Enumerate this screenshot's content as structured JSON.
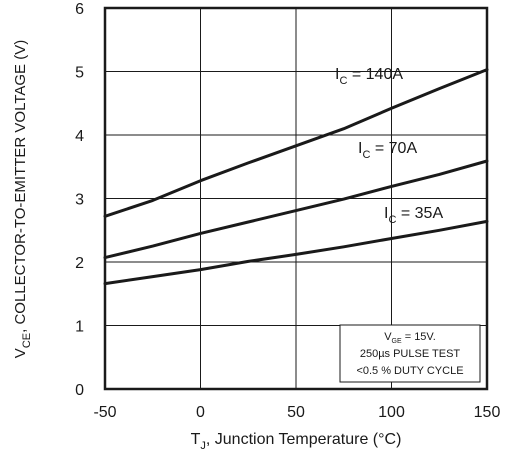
{
  "chart_data": {
    "type": "line",
    "x_axis": {
      "range": [
        -50,
        150
      ],
      "ticks": [
        "-50",
        "0",
        "50",
        "100",
        "150"
      ],
      "tick_values": [
        -50,
        0,
        50,
        100,
        150
      ],
      "label_main": "T",
      "label_sub": "J",
      "label_rest": ", Junction Temperature (°C)"
    },
    "y_axis": {
      "range": [
        0,
        6
      ],
      "ticks": [
        "0",
        "1",
        "2",
        "3",
        "4",
        "5",
        "6"
      ],
      "tick_values": [
        0,
        1,
        2,
        3,
        4,
        5,
        6
      ],
      "label_main": "V",
      "label_sub": "CE",
      "label_rest": ", COLLECTOR-TO-EMITTER VOLTAGE (V)"
    },
    "grid": true,
    "series": [
      {
        "label_main": "I",
        "label_sub": "C",
        "label_rest": " = 140A",
        "x": [
          -50,
          -25,
          0,
          25,
          50,
          75,
          100,
          125,
          150
        ],
        "y": [
          2.72,
          2.97,
          3.28,
          3.56,
          3.83,
          4.1,
          4.42,
          4.73,
          5.03
        ]
      },
      {
        "label_main": "I",
        "label_sub": "C",
        "label_rest": " = 70A",
        "x": [
          -50,
          -25,
          0,
          25,
          50,
          75,
          100,
          125,
          150
        ],
        "y": [
          2.07,
          2.25,
          2.45,
          2.63,
          2.81,
          2.99,
          3.19,
          3.38,
          3.59
        ]
      },
      {
        "label_main": "I",
        "label_sub": "C",
        "label_rest": " = 35A",
        "x": [
          -50,
          -25,
          0,
          25,
          50,
          75,
          100,
          125,
          150
        ],
        "y": [
          1.66,
          1.77,
          1.88,
          2.01,
          2.12,
          2.24,
          2.37,
          2.5,
          2.64
        ]
      }
    ],
    "annotation": {
      "line1_main": "V",
      "line1_sub": "GE",
      "line1_rest": " = 15V.",
      "line2": "250µs PULSE TEST",
      "line3": "<0.5 % DUTY CYCLE"
    }
  }
}
